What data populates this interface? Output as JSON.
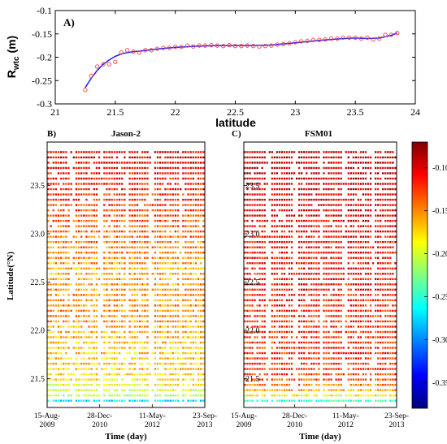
{
  "panelA": {
    "label": "A)",
    "ylabel_main": "R",
    "ylabel_sub": "wtc",
    "ylabel_unit": " (m)",
    "xlabel": "latitude",
    "xticks": [
      "21",
      "21.5",
      "22",
      "22.5",
      "23",
      "23.5",
      "24"
    ],
    "yticks": [
      "-0.1",
      "-0.15",
      "-0.2",
      "-0.25",
      "-0.3"
    ]
  },
  "panelB": {
    "label": "B)",
    "title": "Jason-2"
  },
  "panelC": {
    "label": "C)",
    "title": "FSM01"
  },
  "heatmap_axes": {
    "ylabel": "Latitude(°N)",
    "xlabel": "Time (day)",
    "yticks": [
      "23.5",
      "23.0",
      "22.5",
      "22.0",
      "21.5"
    ],
    "xticks": [
      {
        "line1": "15-Aug-",
        "line2": "2009"
      },
      {
        "line1": "28-Dec-",
        "line2": "2010"
      },
      {
        "line1": "11-May-",
        "line2": "2012"
      },
      {
        "line1": "23-Sep-",
        "line2": "2013"
      }
    ]
  },
  "colorbar": {
    "ticks": [
      "-0.10",
      "-0.15",
      "-0.20",
      "-0.25",
      "-0.30",
      "-0.35"
    ],
    "colors": [
      "#7f0000",
      "#ff0000",
      "#ff8000",
      "#ffff00",
      "#80ff80",
      "#00ffff",
      "#0080ff",
      "#0000ff",
      "#00007f"
    ]
  },
  "chart_data": [
    {
      "type": "line",
      "panel": "A",
      "xlabel": "latitude",
      "ylabel": "Rwtc (m)",
      "xlim": [
        21,
        24
      ],
      "ylim": [
        -0.3,
        -0.1
      ],
      "series": [
        {
          "style": "red circles",
          "color": "#ff4d4d",
          "x": [
            21.25,
            21.3,
            21.35,
            21.4,
            21.45,
            21.5,
            21.55,
            21.6,
            21.65,
            21.7,
            21.75,
            21.8,
            21.85,
            21.9,
            21.95,
            22.0,
            22.05,
            22.1,
            22.15,
            22.2,
            22.25,
            22.3,
            22.35,
            22.4,
            22.45,
            22.5,
            22.55,
            22.6,
            22.65,
            22.7,
            22.75,
            22.8,
            22.85,
            22.9,
            22.95,
            23.0,
            23.05,
            23.1,
            23.15,
            23.2,
            23.25,
            23.3,
            23.35,
            23.4,
            23.45,
            23.5,
            23.55,
            23.6,
            23.65,
            23.7,
            23.75,
            23.8,
            23.85
          ],
          "y": [
            -0.27,
            -0.24,
            -0.22,
            -0.215,
            -0.215,
            -0.21,
            -0.19,
            -0.185,
            -0.188,
            -0.19,
            -0.185,
            -0.185,
            -0.182,
            -0.18,
            -0.18,
            -0.178,
            -0.178,
            -0.175,
            -0.177,
            -0.175,
            -0.175,
            -0.174,
            -0.175,
            -0.176,
            -0.174,
            -0.176,
            -0.176,
            -0.175,
            -0.176,
            -0.177,
            -0.176,
            -0.175,
            -0.173,
            -0.172,
            -0.17,
            -0.168,
            -0.166,
            -0.165,
            -0.163,
            -0.163,
            -0.162,
            -0.16,
            -0.16,
            -0.158,
            -0.158,
            -0.158,
            -0.16,
            -0.158,
            -0.162,
            -0.16,
            -0.152,
            -0.152,
            -0.148
          ]
        },
        {
          "style": "blue fitted line",
          "color": "#1a1aff",
          "x": [
            21.25,
            21.3,
            21.35,
            21.4,
            21.45,
            21.5,
            21.55,
            21.6,
            21.65,
            21.7,
            21.8,
            21.9,
            22.0,
            22.2,
            22.4,
            22.6,
            22.8,
            23.0,
            23.2,
            23.4,
            23.5,
            23.6,
            23.7,
            23.8,
            23.85
          ],
          "y": [
            -0.265,
            -0.245,
            -0.228,
            -0.215,
            -0.206,
            -0.198,
            -0.193,
            -0.19,
            -0.188,
            -0.187,
            -0.184,
            -0.181,
            -0.179,
            -0.176,
            -0.175,
            -0.175,
            -0.174,
            -0.169,
            -0.164,
            -0.16,
            -0.159,
            -0.16,
            -0.159,
            -0.153,
            -0.148
          ]
        }
      ]
    },
    {
      "type": "heatmap",
      "panel": "B",
      "title": "Jason-2",
      "ylabel": "Latitude(°N)",
      "xlabel": "Time (day)",
      "ylim": [
        21.2,
        23.95
      ],
      "clim": [
        -0.38,
        -0.07
      ],
      "x_ticks": [
        "15-Aug-2009",
        "28-Dec-2010",
        "11-May-2012",
        "23-Sep-2013"
      ],
      "latitude_profile": {
        "lat": [
          21.25,
          21.3,
          21.35,
          21.4,
          21.5,
          21.6,
          21.8,
          22.0,
          22.2,
          22.4,
          22.6,
          22.8,
          23.0,
          23.2,
          23.4,
          23.6,
          23.8,
          23.9
        ],
        "value": [
          -0.3,
          -0.22,
          -0.2,
          -0.19,
          -0.18,
          -0.17,
          -0.17,
          -0.16,
          -0.15,
          -0.15,
          -0.16,
          -0.15,
          -0.14,
          -0.13,
          -0.12,
          -0.11,
          -0.1,
          -0.1
        ]
      }
    },
    {
      "type": "heatmap",
      "panel": "C",
      "title": "FSM01",
      "ylabel": "Latitude(°N)",
      "xlabel": "Time (day)",
      "ylim": [
        21.2,
        23.95
      ],
      "clim": [
        -0.38,
        -0.07
      ],
      "x_ticks": [
        "15-Aug-2009",
        "28-Dec-2010",
        "11-May-2012",
        "23-Sep-2013"
      ],
      "latitude_profile": {
        "lat": [
          21.25,
          21.3,
          21.35,
          21.4,
          21.5,
          21.6,
          21.8,
          22.0,
          22.2,
          22.4,
          22.6,
          22.8,
          23.0,
          23.2,
          23.4,
          23.6,
          23.8,
          23.9
        ],
        "value": [
          -0.28,
          -0.2,
          -0.17,
          -0.15,
          -0.13,
          -0.12,
          -0.12,
          -0.12,
          -0.12,
          -0.11,
          -0.11,
          -0.11,
          -0.11,
          -0.1,
          -0.1,
          -0.09,
          -0.09,
          -0.09
        ]
      }
    }
  ]
}
